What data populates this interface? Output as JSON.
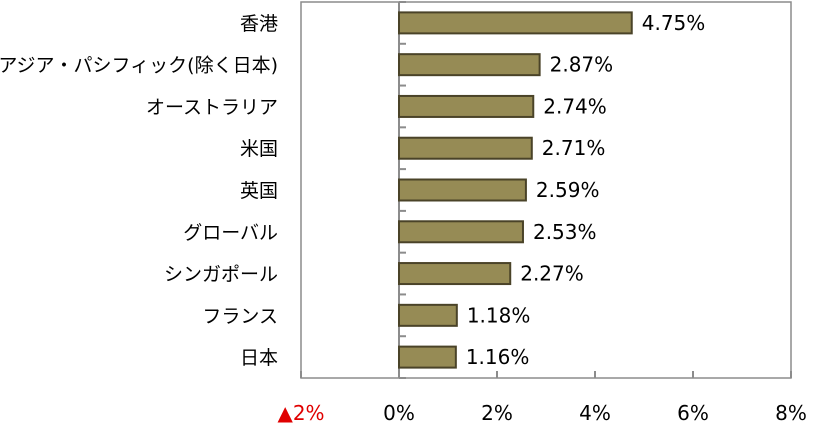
{
  "chart_data": {
    "type": "bar",
    "orientation": "horizontal",
    "title": "",
    "xlabel": "",
    "ylabel": "",
    "categories": [
      "香港",
      "アジア・パシフィック(除く日本)",
      "オーストラリア",
      "米国",
      "英国",
      "グローバル",
      "シンガポール",
      "フランス",
      "日本"
    ],
    "values": [
      4.75,
      2.87,
      2.74,
      2.71,
      2.59,
      2.53,
      2.27,
      1.18,
      1.16
    ],
    "value_labels": [
      "4.75%",
      "2.87%",
      "2.74%",
      "2.71%",
      "2.59%",
      "2.53%",
      "2.27%",
      "1.18%",
      "1.16%"
    ],
    "xlim": [
      -2,
      8
    ],
    "x_ticks": [
      -2,
      0,
      2,
      4,
      6,
      8
    ],
    "x_tick_labels": [
      "▲2%",
      "0%",
      "2%",
      "4%",
      "6%",
      "8%"
    ],
    "grid": false,
    "legend": "none",
    "colors": {
      "bar_fill": "#968b55",
      "bar_edge": "#4a4328",
      "axis": "#8c8c8c",
      "negative_label": "#e00000"
    }
  }
}
